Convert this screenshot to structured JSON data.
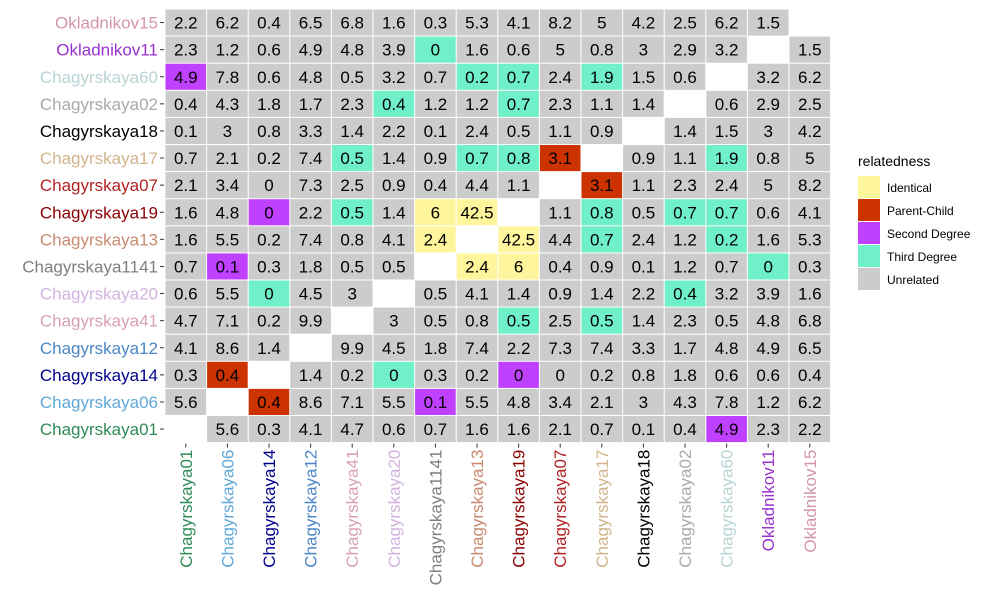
{
  "chart_data": {
    "type": "heatmap",
    "labels": [
      "Chagyrskaya01",
      "Chagyrskaya06",
      "Chagyrskaya14",
      "Chagyrskaya12",
      "Chagyrskaya41",
      "Chagyrskaya20",
      "Chagyrskaya1141",
      "Chagyrskaya13",
      "Chagyrskaya19",
      "Chagyrskaya07",
      "Chagyrskaya17",
      "Chagyrskaya18",
      "Chagyrskaya02",
      "Chagyrskaya60",
      "Okladnikov11",
      "Okladnikov15"
    ],
    "label_colors": [
      "#2e8b57",
      "#5fa8d8",
      "#00008b",
      "#4a86c5",
      "#d9a0b4",
      "#d2b3df",
      "#7f7f7f",
      "#c88a6e",
      "#8b0000",
      "#b22222",
      "#d2b48c",
      "#000000",
      "#a9a9a9",
      "#b8d4d4",
      "#9932cc",
      "#d495aa"
    ],
    "rows": [
      [
        "",
        "5.6",
        "0.3",
        "4.1",
        "4.7",
        "0.6",
        "0.7",
        "1.6",
        "1.6",
        "2.1",
        "0.7",
        "0.1",
        "0.4",
        "4.9",
        "2.3",
        "2.2"
      ],
      [
        "5.6",
        "",
        "0.4",
        "8.6",
        "7.1",
        "5.5",
        "0.1",
        "5.5",
        "4.8",
        "3.4",
        "2.1",
        "3",
        "4.3",
        "7.8",
        "1.2",
        "6.2"
      ],
      [
        "0.3",
        "0.4",
        "",
        "1.4",
        "0.2",
        "0",
        "0.3",
        "0.2",
        "0",
        "0",
        "0.2",
        "0.8",
        "1.8",
        "0.6",
        "0.6",
        "0.4"
      ],
      [
        "4.1",
        "8.6",
        "1.4",
        "",
        "9.9",
        "4.5",
        "1.8",
        "7.4",
        "2.2",
        "7.3",
        "7.4",
        "3.3",
        "1.7",
        "4.8",
        "4.9",
        "6.5"
      ],
      [
        "4.7",
        "7.1",
        "0.2",
        "9.9",
        "",
        "3",
        "0.5",
        "0.8",
        "0.5",
        "2.5",
        "0.5",
        "1.4",
        "2.3",
        "0.5",
        "4.8",
        "6.8"
      ],
      [
        "0.6",
        "5.5",
        "0",
        "4.5",
        "3",
        "",
        "0.5",
        "4.1",
        "1.4",
        "0.9",
        "1.4",
        "2.2",
        "0.4",
        "3.2",
        "3.9",
        "1.6"
      ],
      [
        "0.7",
        "0.1",
        "0.3",
        "1.8",
        "0.5",
        "0.5",
        "",
        "2.4",
        "6",
        "0.4",
        "0.9",
        "0.1",
        "1.2",
        "0.7",
        "0",
        "0.3"
      ],
      [
        "1.6",
        "5.5",
        "0.2",
        "7.4",
        "0.8",
        "4.1",
        "2.4",
        "",
        "42.5",
        "4.4",
        "0.7",
        "2.4",
        "1.2",
        "0.2",
        "1.6",
        "5.3"
      ],
      [
        "1.6",
        "4.8",
        "0",
        "2.2",
        "0.5",
        "1.4",
        "6",
        "42.5",
        "",
        "1.1",
        "0.8",
        "0.5",
        "0.7",
        "0.7",
        "0.6",
        "4.1"
      ],
      [
        "2.1",
        "3.4",
        "0",
        "7.3",
        "2.5",
        "0.9",
        "0.4",
        "4.4",
        "1.1",
        "",
        "3.1",
        "1.1",
        "2.3",
        "2.4",
        "5",
        "8.2"
      ],
      [
        "0.7",
        "2.1",
        "0.2",
        "7.4",
        "0.5",
        "1.4",
        "0.9",
        "0.7",
        "0.8",
        "3.1",
        "",
        "0.9",
        "1.1",
        "1.9",
        "0.8",
        "5"
      ],
      [
        "0.1",
        "3",
        "0.8",
        "3.3",
        "1.4",
        "2.2",
        "0.1",
        "2.4",
        "0.5",
        "1.1",
        "0.9",
        "",
        "1.4",
        "1.5",
        "3",
        "4.2"
      ],
      [
        "0.4",
        "4.3",
        "1.8",
        "1.7",
        "2.3",
        "0.4",
        "1.2",
        "1.2",
        "0.7",
        "2.3",
        "1.1",
        "1.4",
        "",
        "0.6",
        "2.9",
        "2.5"
      ],
      [
        "4.9",
        "7.8",
        "0.6",
        "4.8",
        "0.5",
        "3.2",
        "0.7",
        "0.2",
        "0.7",
        "2.4",
        "1.9",
        "1.5",
        "0.6",
        "",
        "3.2",
        "6.2"
      ],
      [
        "2.3",
        "1.2",
        "0.6",
        "4.9",
        "4.8",
        "3.9",
        "0",
        "1.6",
        "0.6",
        "5",
        "0.8",
        "3",
        "2.9",
        "3.2",
        "",
        "1.5"
      ],
      [
        "2.2",
        "6.2",
        "0.4",
        "6.5",
        "6.8",
        "1.6",
        "0.3",
        "5.3",
        "4.1",
        "8.2",
        "5",
        "4.2",
        "2.5",
        "6.2",
        "1.5",
        ""
      ]
    ],
    "categories": [
      [
        null,
        "U",
        "U",
        "U",
        "U",
        "U",
        "U",
        "U",
        "U",
        "U",
        "U",
        "U",
        "U",
        "S",
        "U",
        "U"
      ],
      [
        "U",
        null,
        "P",
        "U",
        "U",
        "U",
        "S",
        "U",
        "U",
        "U",
        "U",
        "U",
        "U",
        "U",
        "U",
        "U"
      ],
      [
        "U",
        "P",
        null,
        "U",
        "U",
        "T",
        "U",
        "U",
        "S",
        "U",
        "U",
        "U",
        "U",
        "U",
        "U",
        "U"
      ],
      [
        "U",
        "U",
        "U",
        null,
        "U",
        "U",
        "U",
        "U",
        "U",
        "U",
        "U",
        "U",
        "U",
        "U",
        "U",
        "U"
      ],
      [
        "U",
        "U",
        "U",
        "U",
        null,
        "U",
        "U",
        "U",
        "T",
        "U",
        "T",
        "U",
        "U",
        "U",
        "U",
        "U"
      ],
      [
        "U",
        "U",
        "T",
        "U",
        "U",
        null,
        "U",
        "U",
        "U",
        "U",
        "U",
        "U",
        "T",
        "U",
        "U",
        "U"
      ],
      [
        "U",
        "S",
        "U",
        "U",
        "U",
        "U",
        null,
        "I",
        "I",
        "U",
        "U",
        "U",
        "U",
        "U",
        "T",
        "U"
      ],
      [
        "U",
        "U",
        "U",
        "U",
        "U",
        "U",
        "I",
        null,
        "I",
        "U",
        "T",
        "U",
        "U",
        "T",
        "U",
        "U"
      ],
      [
        "U",
        "U",
        "S",
        "U",
        "T",
        "U",
        "I",
        "I",
        null,
        "U",
        "T",
        "U",
        "T",
        "T",
        "U",
        "U"
      ],
      [
        "U",
        "U",
        "U",
        "U",
        "U",
        "U",
        "U",
        "U",
        "U",
        null,
        "P",
        "U",
        "U",
        "U",
        "U",
        "U"
      ],
      [
        "U",
        "U",
        "U",
        "U",
        "T",
        "U",
        "U",
        "T",
        "T",
        "P",
        null,
        "U",
        "U",
        "T",
        "U",
        "U"
      ],
      [
        "U",
        "U",
        "U",
        "U",
        "U",
        "U",
        "U",
        "U",
        "U",
        "U",
        "U",
        null,
        "U",
        "U",
        "U",
        "U"
      ],
      [
        "U",
        "U",
        "U",
        "U",
        "U",
        "T",
        "U",
        "U",
        "T",
        "U",
        "U",
        "U",
        null,
        "U",
        "U",
        "U"
      ],
      [
        "S",
        "U",
        "U",
        "U",
        "U",
        "U",
        "U",
        "T",
        "T",
        "U",
        "T",
        "U",
        "U",
        null,
        "U",
        "U"
      ],
      [
        "U",
        "U",
        "U",
        "U",
        "U",
        "U",
        "T",
        "U",
        "U",
        "U",
        "U",
        "U",
        "U",
        "U",
        null,
        "U"
      ],
      [
        "U",
        "U",
        "U",
        "U",
        "U",
        "U",
        "U",
        "U",
        "U",
        "U",
        "U",
        "U",
        "U",
        "U",
        "U",
        null
      ]
    ],
    "legend": {
      "title": "relatedness",
      "position": "right",
      "items": [
        {
          "key": "I",
          "label": "Identical",
          "color": "#fff59d"
        },
        {
          "key": "P",
          "label": "Parent-Child",
          "color": "#cc3300"
        },
        {
          "key": "S",
          "label": "Second Degree",
          "color": "#bf40ff"
        },
        {
          "key": "T",
          "label": "Third Degree",
          "color": "#6ff0c8"
        },
        {
          "key": "U",
          "label": "Unrelated",
          "color": "#cccccc"
        }
      ]
    },
    "grid": true
  }
}
